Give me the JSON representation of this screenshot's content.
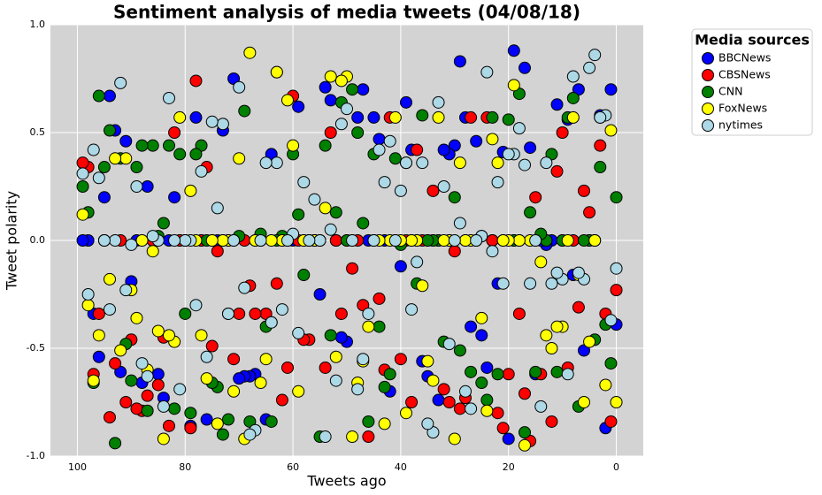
{
  "chart_data": {
    "type": "scatter",
    "title": "Sentiment analysis of media tweets (04/08/18)",
    "xlabel": "Tweets ago",
    "ylabel": "Tweet polarity",
    "legend_title": "Media sources",
    "legend_position": "outside-upper-right",
    "grid": true,
    "background": "#d3d3d3",
    "xlim": [
      105,
      -5
    ],
    "xticks": [
      100,
      80,
      60,
      40,
      20,
      0
    ],
    "ylim": [
      -1,
      1
    ],
    "yticks": [
      {
        "value": -1,
        "label": "-1.0"
      },
      -0.5,
      {
        "value": 0,
        "label": "0.0"
      },
      0.5,
      {
        "value": 1,
        "label": "1.0"
      }
    ],
    "x": [
      0,
      1,
      2,
      3,
      4,
      5,
      6,
      7,
      8,
      9,
      10,
      11,
      12,
      13,
      14,
      15,
      16,
      17,
      18,
      19,
      20,
      21,
      22,
      23,
      24,
      25,
      26,
      27,
      28,
      29,
      30,
      31,
      32,
      33,
      34,
      35,
      36,
      37,
      38,
      39,
      40,
      41,
      42,
      43,
      44,
      45,
      46,
      47,
      48,
      49,
      50,
      51,
      52,
      53,
      54,
      55,
      56,
      57,
      58,
      59,
      60,
      61,
      62,
      63,
      64,
      65,
      66,
      67,
      68,
      69,
      70,
      71,
      72,
      73,
      74,
      75,
      76,
      77,
      78,
      79,
      80,
      81,
      82,
      83,
      84,
      85,
      86,
      87,
      88,
      89,
      90,
      91,
      92,
      93,
      94,
      95,
      96,
      97,
      98,
      99
    ],
    "series": [
      {
        "name": "BBCNews",
        "color": "#0000ff",
        "values": [
          -0.39,
          0.7,
          -0.87,
          0.58,
          0,
          0,
          -0.51,
          0.7,
          -0.16,
          0.56,
          0,
          0.63,
          0,
          -0.02,
          0,
          -0.62,
          0.43,
          0.8,
          0,
          0.88,
          -0.92,
          0.41,
          -0.2,
          0,
          -0.59,
          -0.44,
          0.46,
          -0.4,
          0.57,
          0.83,
          0.44,
          0.4,
          0.42,
          -0.74,
          0,
          -0.63,
          -0.56,
          0,
          0.42,
          0.64,
          -0.12,
          0,
          -0.7,
          0,
          0.47,
          0.57,
          0,
          0.7,
          0.57,
          0,
          -0.47,
          -0.45,
          0,
          0.65,
          0.71,
          -0.25,
          0,
          0,
          0,
          0.62,
          0,
          0,
          0,
          0.78,
          0.4,
          -0.83,
          0,
          -0.62,
          -0.63,
          -0.63,
          -0.64,
          0.75,
          0,
          0.51,
          0,
          0,
          -0.83,
          0,
          0.57,
          -0.86,
          0,
          0,
          0.2,
          0,
          -0.73,
          -0.62,
          0,
          0.25,
          -0.66,
          0,
          -0.19,
          0.46,
          -0.61,
          0.51,
          0.67,
          0.2,
          -0.54,
          -0.34,
          0,
          0
        ]
      },
      {
        "name": "CBSNews",
        "color": "#ff0000",
        "values": [
          -0.23,
          -0.84,
          -0.34,
          0.44,
          0,
          0.13,
          0.23,
          -0.31,
          0,
          -0.59,
          0.5,
          0.32,
          -0.84,
          0,
          -0.62,
          0.2,
          -0.93,
          -0.71,
          -0.34,
          0,
          -0.62,
          -0.87,
          -0.8,
          0,
          0.57,
          0.02,
          0,
          0.57,
          -0.73,
          -0.78,
          -0.05,
          -0.75,
          -0.69,
          0,
          0.23,
          0,
          0,
          0.42,
          -0.75,
          0,
          -0.55,
          0,
          0.57,
          -0.6,
          -0.27,
          0,
          -0.91,
          -0.3,
          0,
          -0.13,
          0,
          -0.34,
          0,
          0.5,
          -0.59,
          0,
          0,
          -0.46,
          -0.46,
          0,
          0.67,
          -0.59,
          -0.74,
          -0.2,
          -0.38,
          -0.34,
          0,
          -0.34,
          -0.21,
          0,
          -0.34,
          -0.55,
          -0.34,
          0,
          -0.05,
          -0.49,
          0.34,
          0,
          0.74,
          -0.87,
          0,
          0,
          0.5,
          -0.86,
          -0.45,
          -0.67,
          0,
          -0.72,
          -0.79,
          -0.78,
          -0.46,
          -0.75,
          0,
          -0.57,
          -0.82,
          0,
          -0.34,
          -0.62,
          0.34,
          0.36
        ]
      },
      {
        "name": "CNN",
        "color": "#008000",
        "values": [
          0.2,
          -0.57,
          -0.39,
          0.34,
          -0.46,
          0,
          0,
          -0.77,
          0.66,
          0.57,
          0,
          -0.61,
          0.4,
          0,
          0.03,
          -0.61,
          0.13,
          -0.89,
          0.68,
          0,
          0.56,
          0,
          -0.62,
          0.57,
          -0.74,
          -0.66,
          0,
          -0.61,
          0,
          -0.51,
          0.2,
          0,
          -0.47,
          0,
          0,
          0,
          0.58,
          -0.2,
          0,
          0.36,
          -0.02,
          0.38,
          -0.62,
          -0.68,
          -0.4,
          0.4,
          -0.84,
          0.08,
          0.5,
          0.7,
          0,
          0.64,
          0.13,
          -0.44,
          0.44,
          -0.91,
          0,
          0,
          -0.16,
          0.12,
          0.4,
          0,
          0.02,
          0,
          -0.84,
          -0.4,
          0.03,
          0,
          -0.84,
          0.6,
          0.02,
          0,
          -0.83,
          -0.9,
          -0.68,
          -0.66,
          0,
          0.44,
          0.4,
          -0.8,
          -0.34,
          0.4,
          -0.78,
          0.44,
          0.08,
          0.02,
          0.44,
          -0.79,
          0.44,
          0.34,
          -0.65,
          -0.48,
          0.38,
          -0.94,
          0.51,
          0.34,
          0.67,
          -0.66,
          0.13,
          0.25
        ]
      },
      {
        "name": "FoxNews",
        "color": "#ffff00",
        "values": [
          -0.75,
          0.51,
          -0.67,
          0.57,
          0,
          -0.47,
          -0.75,
          -0.16,
          0.57,
          0,
          -0.4,
          -0.4,
          -0.5,
          -0.44,
          -0.1,
          0,
          0,
          -0.95,
          0,
          0.72,
          0,
          0,
          0.36,
          0.47,
          -0.79,
          -0.36,
          0,
          0,
          0,
          0.36,
          -0.92,
          0,
          0,
          0.57,
          -0.65,
          -0.56,
          -0.21,
          0,
          0,
          -0.8,
          0,
          0.57,
          0,
          -0.85,
          0,
          0,
          -0.4,
          -0.56,
          -0.66,
          -0.91,
          0.76,
          0.74,
          -0.54,
          0.76,
          0.15,
          0,
          0,
          0,
          0,
          -0.7,
          0.44,
          0.65,
          0,
          0.78,
          0,
          -0.55,
          -0.66,
          0,
          0.87,
          -0.92,
          0.38,
          -0.7,
          0,
          0,
          -0.85,
          0,
          -0.64,
          -0.44,
          0,
          0.23,
          0,
          0.57,
          -0.47,
          -0.44,
          -0.92,
          -0.42,
          -0.05,
          -0.6,
          0,
          -0.36,
          -0.23,
          0.38,
          -0.51,
          0.38,
          -0.18,
          0,
          -0.44,
          -0.65,
          -0.3,
          0.12
        ]
      },
      {
        "name": "nytimes",
        "color": "#add8e6",
        "values": [
          -0.13,
          -0.37,
          0.58,
          0.57,
          0.86,
          0.8,
          -0.18,
          -0.15,
          0.76,
          -0.62,
          -0.18,
          -0.15,
          -0.2,
          0.36,
          -0.77,
          0,
          -0.2,
          0.35,
          0.52,
          0.4,
          0.4,
          -0.2,
          0.27,
          -0.05,
          0.78,
          0.02,
          0,
          -0.78,
          -0.7,
          0.08,
          0,
          -0.48,
          0.25,
          0.64,
          -0.89,
          -0.85,
          0.36,
          -0.1,
          -0.32,
          0.36,
          0.23,
          0,
          0.46,
          0.27,
          0.42,
          0,
          -0.34,
          -0.55,
          -0.69,
          0,
          0.61,
          0.54,
          -0.65,
          0.05,
          -0.91,
          0,
          0.19,
          0,
          0.27,
          -0.43,
          0.03,
          0,
          -0.32,
          0.36,
          -0.38,
          0.36,
          0,
          -0.88,
          -0.9,
          -0.22,
          0.71,
          0,
          -0.34,
          0.54,
          0.15,
          0.55,
          -0.54,
          0.32,
          -0.3,
          0,
          0,
          -0.69,
          0,
          0.66,
          -0.77,
          0,
          0.02,
          -0.63,
          -0.57,
          0.25,
          -0.02,
          -0.23,
          0.73,
          0,
          -0.32,
          0,
          0.29,
          0.42,
          -0.25,
          0.31
        ]
      }
    ]
  }
}
